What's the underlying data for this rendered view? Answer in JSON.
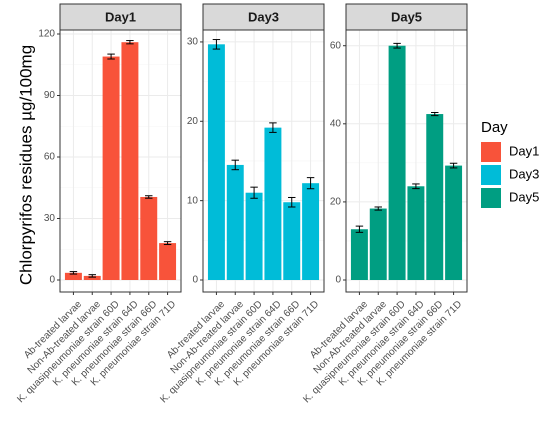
{
  "chart_data": {
    "type": "bar",
    "ylabel": "Chlorpyrifos residues µg/100mg",
    "xlabel": "",
    "categories": [
      "Ab-treated larvae",
      "Non-Ab-treated larvae",
      "K. quasipneumoniae strain 60D",
      "K. pneumoniae strain 64D",
      "K. pneumoniae strain 66D",
      "K. pneumoniae strain 71D"
    ],
    "legend": {
      "title": "Day",
      "position": "right",
      "entries": [
        "Day1",
        "Day3",
        "Day5"
      ]
    },
    "facets": [
      {
        "label": "Day1",
        "color": "#F8533A",
        "ylim": [
          0,
          120
        ],
        "yticks": [
          0,
          30,
          60,
          90,
          120
        ],
        "values": [
          3.5,
          2.0,
          109.0,
          116.0,
          40.5,
          18.0
        ],
        "errors": [
          0.6,
          0.6,
          1.2,
          0.8,
          0.6,
          0.7
        ]
      },
      {
        "label": "Day3",
        "color": "#00BCD8",
        "ylim": [
          0,
          31
        ],
        "yticks": [
          0,
          10,
          20,
          30
        ],
        "values": [
          29.7,
          14.5,
          11.0,
          19.2,
          9.8,
          12.2
        ],
        "errors": [
          0.6,
          0.6,
          0.7,
          0.6,
          0.6,
          0.7
        ]
      },
      {
        "label": "Day5",
        "color": "#009E82",
        "ylim": [
          0,
          63
        ],
        "yticks": [
          0,
          20,
          40,
          60
        ],
        "values": [
          13.0,
          18.3,
          60.0,
          24.0,
          42.5,
          29.3
        ],
        "errors": [
          0.8,
          0.4,
          0.6,
          0.6,
          0.4,
          0.6
        ]
      }
    ]
  }
}
